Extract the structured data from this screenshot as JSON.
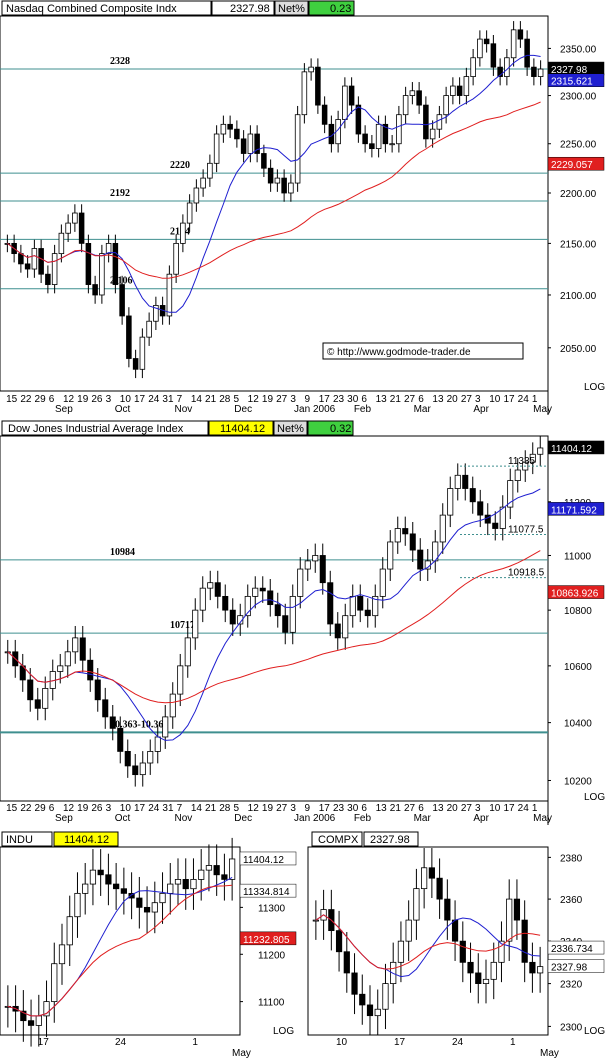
{
  "chart_data": [
    {
      "type": "candlestick",
      "title": "Nasdaq Combined Composite Indx",
      "last": "2327.98",
      "net_label": "Net%",
      "net_value": "0.23",
      "price_badges": [
        {
          "label": "2327.98",
          "value": 2327.98,
          "bg": "#000000",
          "fg": "#ffffff"
        },
        {
          "label": "2315.621",
          "value": 2315.621,
          "bg": "#1f1fd0",
          "fg": "#ffffff"
        },
        {
          "label": "2229.057",
          "value": 2229.057,
          "bg": "#e01f1f",
          "fg": "#ffffff"
        }
      ],
      "y_ticks": [
        "2350.00",
        "2300.00",
        "2250.00",
        "2200.00",
        "2150.00",
        "2100.00",
        "2050.00"
      ],
      "y_tick_values": [
        2350,
        2300,
        2250,
        2200,
        2150,
        2100,
        2050
      ],
      "ylim": [
        2010,
        2385
      ],
      "scale": "LOG",
      "x_ticks": [
        "15",
        "22",
        "29",
        "6",
        "12",
        "19",
        "26",
        "3",
        "10",
        "17",
        "24",
        "31",
        "7",
        "14",
        "21",
        "28",
        "5",
        "12",
        "19",
        "27",
        "3",
        "9",
        "17",
        "23",
        "30",
        "6",
        "13",
        "21",
        "27",
        "6",
        "13",
        "20",
        "27",
        "3",
        "10",
        "17",
        "24",
        "1"
      ],
      "month_labels": [
        "Sep",
        "Oct",
        "Nov",
        "Dec",
        "Jan 2006",
        "Feb",
        "Mar",
        "Apr",
        "May"
      ],
      "levels": [
        {
          "label": "2328",
          "value": 2328
        },
        {
          "label": "2220",
          "value": 2220
        },
        {
          "label": "2192",
          "value": 2192
        },
        {
          "label": "2154",
          "value": 2154
        },
        {
          "label": "2.106",
          "value": 2106
        }
      ],
      "candles": [
        2150,
        2140,
        2130,
        2125,
        2145,
        2120,
        2110,
        2140,
        2160,
        2170,
        2180,
        2150,
        2110,
        2100,
        2140,
        2150,
        2110,
        2080,
        2040,
        2030,
        2060,
        2075,
        2090,
        2080,
        2120,
        2150,
        2170,
        2190,
        2205,
        2215,
        2230,
        2260,
        2270,
        2265,
        2255,
        2240,
        2260,
        2240,
        2225,
        2210,
        2215,
        2200,
        2210,
        2280,
        2325,
        2330,
        2290,
        2270,
        2250,
        2275,
        2310,
        2290,
        2260,
        2250,
        2245,
        2270,
        2250,
        2250,
        2280,
        2300,
        2305,
        2290,
        2255,
        2265,
        2280,
        2300,
        2310,
        2300,
        2320,
        2340,
        2360,
        2355,
        2330,
        2320,
        2340,
        2370,
        2360,
        2330,
        2320,
        2327.98
      ],
      "annotation": "© http://www.godmode-trader.de"
    },
    {
      "type": "candlestick",
      "title": "Dow Jones Industrial Average Index",
      "last": "11404.12",
      "net_label": "Net%",
      "net_value": "0.32",
      "price_badges": [
        {
          "label": "11404.12",
          "value": 11404.12,
          "bg": "#000000",
          "fg": "#ffffff"
        },
        {
          "label": "11171.592",
          "value": 11171.592,
          "bg": "#1f1fd0",
          "fg": "#ffffff"
        },
        {
          "label": "10863.926",
          "value": 10863.926,
          "bg": "#e01f1f",
          "fg": "#ffffff"
        }
      ],
      "y_ticks": [
        "11200",
        "11000",
        "10800",
        "10600",
        "10400",
        "10200"
      ],
      "y_tick_values": [
        11200,
        11000,
        10800,
        10600,
        10400,
        10200
      ],
      "ylim": [
        10130,
        11450
      ],
      "scale": "LOG",
      "x_ticks": [
        "15",
        "22",
        "29",
        "6",
        "12",
        "19",
        "26",
        "3",
        "10",
        "17",
        "24",
        "31",
        "7",
        "14",
        "21",
        "28",
        "5",
        "12",
        "19",
        "27",
        "3",
        "9",
        "17",
        "23",
        "30",
        "6",
        "13",
        "21",
        "27",
        "6",
        "13",
        "20",
        "27",
        "3",
        "10",
        "17",
        "24",
        "1"
      ],
      "month_labels": [
        "Sep",
        "Oct",
        "Nov",
        "Dec",
        "Jan 2006",
        "Feb",
        "Mar",
        "Apr",
        "May"
      ],
      "levels": [
        {
          "label": "10984",
          "value": 10984
        },
        {
          "label": "10717",
          "value": 10717
        },
        {
          "label": "10.363-10.369",
          "value": 10366
        }
      ],
      "side_labels": [
        {
          "label": "11335",
          "value": 11335
        },
        {
          "label": "11077.5",
          "value": 11077.5
        },
        {
          "label": "10918.5",
          "value": 10918.5
        }
      ],
      "candles": [
        10650,
        10600,
        10550,
        10480,
        10450,
        10520,
        10580,
        10600,
        10650,
        10700,
        10620,
        10550,
        10480,
        10420,
        10380,
        10300,
        10250,
        10220,
        10260,
        10300,
        10350,
        10420,
        10500,
        10600,
        10700,
        10800,
        10880,
        10900,
        10850,
        10800,
        10750,
        10780,
        10850,
        10880,
        10870,
        10820,
        10780,
        10720,
        10850,
        10950,
        10980,
        11000,
        10900,
        10750,
        10700,
        10780,
        10850,
        10800,
        10780,
        10850,
        10950,
        11050,
        11100,
        11080,
        11020,
        10950,
        10980,
        11050,
        11150,
        11250,
        11300,
        11250,
        11200,
        11150,
        11120,
        11100,
        11180,
        11280,
        11320,
        11350,
        11380,
        11404.12
      ],
      "annotation": ""
    },
    {
      "type": "candlestick",
      "title": "INDU",
      "last": "11404.12",
      "price_badges": [
        {
          "label": "11404.12",
          "value": 11404.12,
          "bg": "#ffffff",
          "fg": "#000000"
        },
        {
          "label": "11334.814",
          "value": 11334.814,
          "bg": "#ffffff",
          "fg": "#000000"
        },
        {
          "label": "11232.805",
          "value": 11232.805,
          "bg": "#e01f1f",
          "fg": "#ffffff"
        }
      ],
      "y_ticks": [
        "11300",
        "11200",
        "11100"
      ],
      "y_tick_values": [
        11300,
        11200,
        11100
      ],
      "ylim": [
        11030,
        11430
      ],
      "scale": "LOG",
      "x_ticks": [
        "17",
        "24",
        "1"
      ],
      "month_labels": [
        "May"
      ],
      "candles": [
        11090,
        11080,
        11060,
        11050,
        11070,
        11100,
        11180,
        11220,
        11280,
        11330,
        11350,
        11380,
        11370,
        11350,
        11340,
        11330,
        11320,
        11300,
        11290,
        11310,
        11330,
        11350,
        11360,
        11340,
        11360,
        11380,
        11390,
        11370,
        11360,
        11404.12
      ]
    },
    {
      "type": "candlestick",
      "title": "COMPX",
      "last": "2327.98",
      "price_badges": [
        {
          "label": "2336.734",
          "value": 2336.734,
          "bg": "#ffffff",
          "fg": "#000000"
        },
        {
          "label": "2327.98",
          "value": 2327.98,
          "bg": "#ffffff",
          "fg": "#000000"
        }
      ],
      "y_ticks": [
        "2380",
        "2360",
        "2340",
        "2320",
        "2300"
      ],
      "y_tick_values": [
        2380,
        2360,
        2340,
        2320,
        2300
      ],
      "ylim": [
        2296,
        2385
      ],
      "scale": "LOG",
      "x_ticks": [
        "10",
        "17",
        "24",
        "1"
      ],
      "month_labels": [
        "May"
      ],
      "candles": [
        2350,
        2355,
        2345,
        2335,
        2325,
        2315,
        2310,
        2305,
        2308,
        2320,
        2330,
        2340,
        2350,
        2365,
        2375,
        2370,
        2360,
        2350,
        2340,
        2330,
        2325,
        2320,
        2322,
        2330,
        2340,
        2360,
        2350,
        2330,
        2325,
        2327.98
      ]
    }
  ],
  "colors": {
    "grid": "#3f8f8f",
    "trend_red": "#e01f1f",
    "ma_blue": "#1f1fd0",
    "candle": "#000000",
    "header_bg": "#ffff00",
    "net_bg": "#3fd03f"
  }
}
